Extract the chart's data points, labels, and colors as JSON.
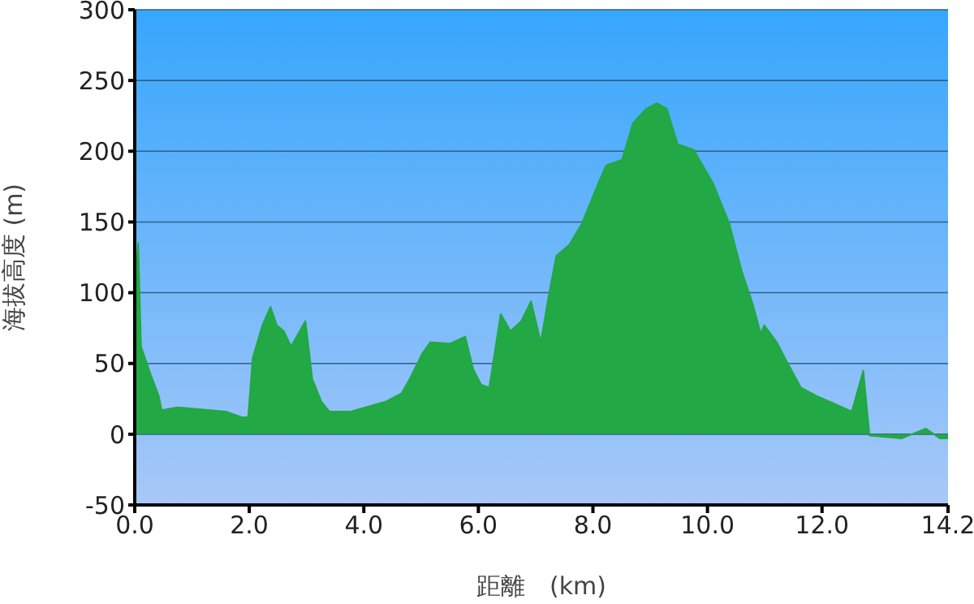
{
  "chart_data": {
    "type": "area",
    "xlabel": "距離　(km)",
    "ylabel": "海拔高度 (m)",
    "x": [
      0,
      0.06,
      0.11,
      0.28,
      0.42,
      0.47,
      0.75,
      1.31,
      1.59,
      1.87,
      1.98,
      2.06,
      2.23,
      2.37,
      2.48,
      2.6,
      2.73,
      2.98,
      3.1,
      3.26,
      3.4,
      3.77,
      4.38,
      4.66,
      4.8,
      5.02,
      5.16,
      5.5,
      5.77,
      5.91,
      6.05,
      6.19,
      6.39,
      6.56,
      6.75,
      6.92,
      7.09,
      7.22,
      7.36,
      7.59,
      7.81,
      8.09,
      8.23,
      8.51,
      8.7,
      8.93,
      9.12,
      9.29,
      9.48,
      9.76,
      10.1,
      10.38,
      10.6,
      10.79,
      10.93,
      10.99,
      11.21,
      11.35,
      11.63,
      11.91,
      12.19,
      12.52,
      12.72,
      12.83,
      13.39,
      13.81,
      14.06,
      14.2
    ],
    "series": [
      {
        "color": "#22a844",
        "values": [
          100,
          135,
          62,
          42,
          27,
          17,
          19,
          17,
          16,
          12,
          12,
          54,
          77,
          90,
          77,
          73,
          62,
          80,
          39,
          23,
          16,
          16,
          23,
          29,
          39,
          57,
          65,
          64,
          69,
          46,
          35,
          33,
          85,
          73,
          80,
          94,
          65,
          96,
          126,
          134,
          149,
          177,
          190,
          194,
          220,
          230,
          234,
          230,
          205,
          201,
          177,
          149,
          115,
          92,
          71,
          77,
          65,
          54,
          33,
          27,
          22,
          16,
          45,
          -1,
          -3,
          4,
          -3,
          -3
        ]
      }
    ],
    "xlim": [
      0,
      14.2
    ],
    "xticks": [
      {
        "value": 0,
        "label": "0.0"
      },
      {
        "value": 2,
        "label": "2.0"
      },
      {
        "value": 4,
        "label": "4.0"
      },
      {
        "value": 6,
        "label": "6.0"
      },
      {
        "value": 8,
        "label": "8.0"
      },
      {
        "value": 10,
        "label": "10.0"
      },
      {
        "value": 12,
        "label": "12.0"
      },
      {
        "value": 14.2,
        "label": "14.2"
      }
    ],
    "ylim": [
      -50,
      300
    ],
    "yticks": [
      -50,
      0,
      50,
      100,
      150,
      200,
      250,
      300
    ],
    "grid": "y"
  }
}
